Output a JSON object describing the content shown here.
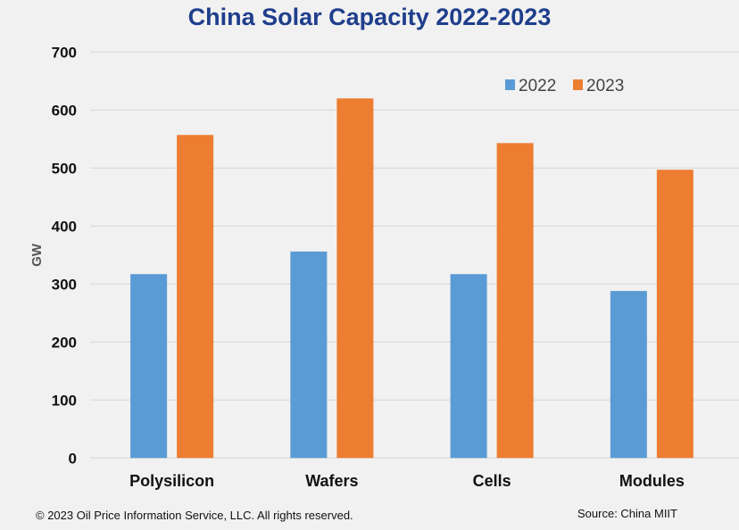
{
  "chart_data": {
    "type": "bar",
    "title": "China Solar Capacity 2022-2023",
    "xlabel": "",
    "ylabel": "GW",
    "ylim": [
      0,
      700
    ],
    "yticks": [
      0,
      100,
      200,
      300,
      400,
      500,
      600,
      700
    ],
    "grid": true,
    "legend_position": "top-right",
    "categories": [
      "Polysilicon",
      "Wafers",
      "Cells",
      "Modules"
    ],
    "series": [
      {
        "name": "2022",
        "color": "#5b9bd5",
        "values": [
          317,
          356,
          317,
          288
        ]
      },
      {
        "name": "2023",
        "color": "#ed7d31",
        "values": [
          557,
          620,
          543,
          497
        ]
      }
    ]
  },
  "footer": {
    "copyright": "© 2023 Oil Price Information Service, LLC. All rights reserved.",
    "source": "Source: China MIIT"
  }
}
